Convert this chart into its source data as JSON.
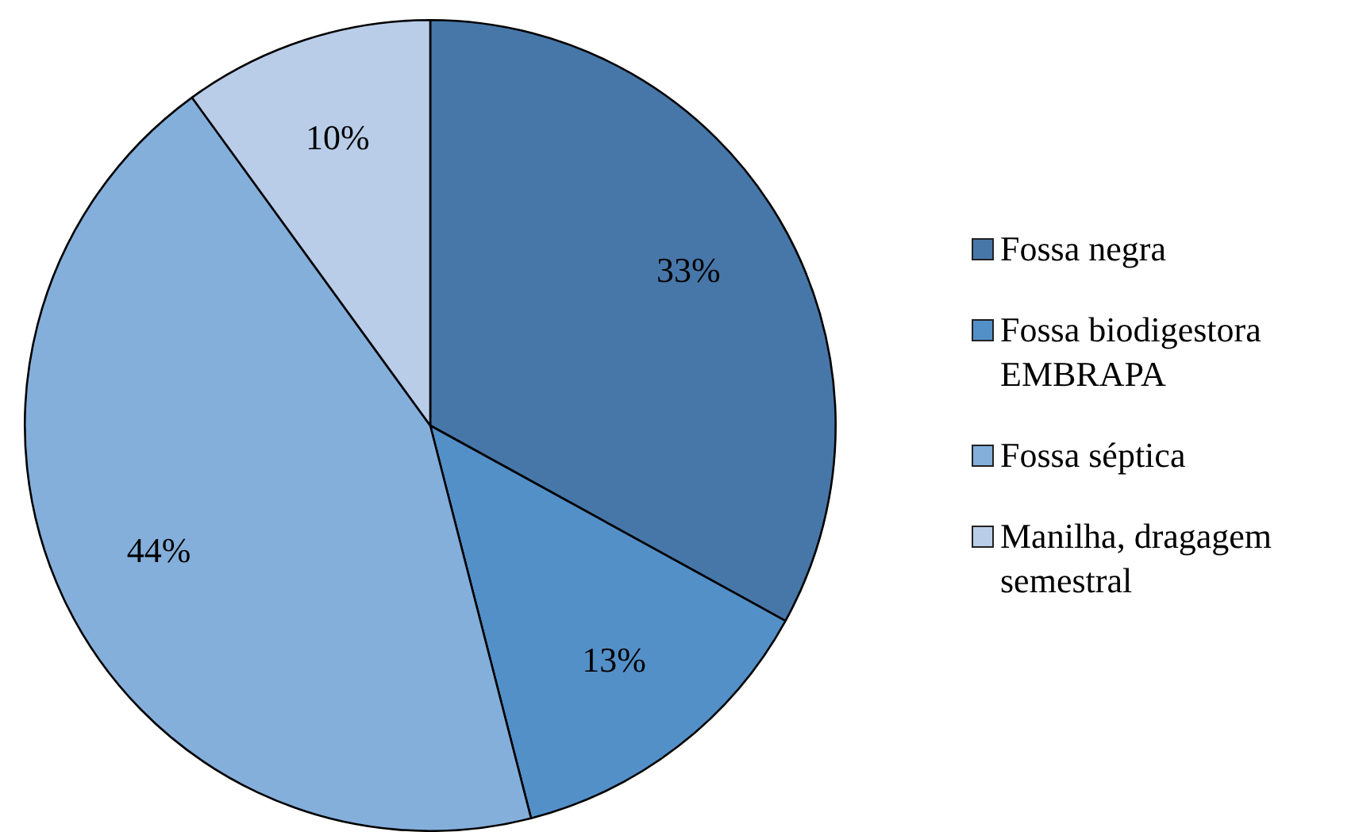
{
  "chart_data": {
    "type": "pie",
    "categories": [
      "Fossa negra",
      "Fossa biodigestora EMBRAPA",
      "Fossa séptica",
      "Manilha, dragagem semestral"
    ],
    "values": [
      33,
      13,
      44,
      10
    ],
    "colors": [
      "#4677a8",
      "#5490c8",
      "#84afdb",
      "#b9cde8"
    ],
    "value_labels": [
      "33%",
      "13%",
      "44%",
      "10%"
    ],
    "legend": "right"
  }
}
